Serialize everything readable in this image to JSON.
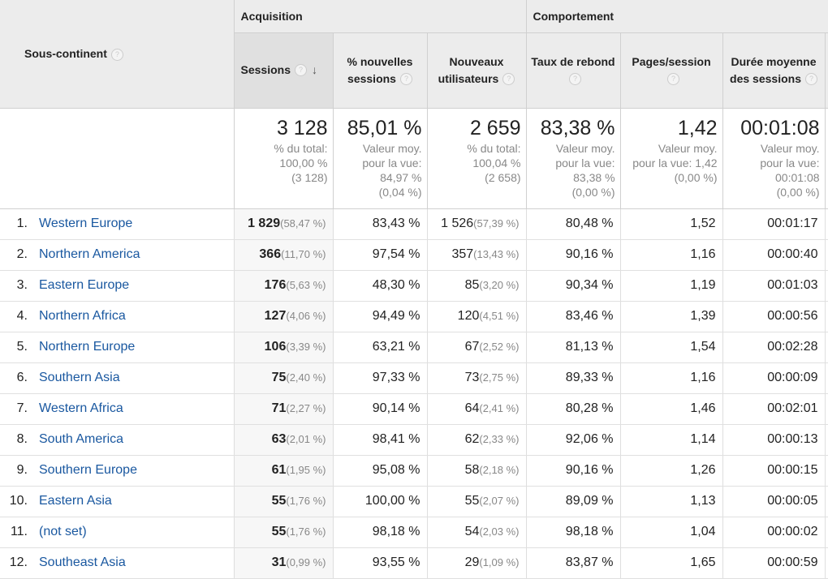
{
  "header": {
    "dimension": "Sous-continent",
    "group_acquisition": "Acquisition",
    "group_behavior": "Comportement",
    "sort_arrow": "↓",
    "help_glyph": "?",
    "columns": [
      "Sessions",
      "% nouvelles sessions",
      "Nouveaux utilisateurs",
      "Taux de rebond",
      "Pages/session",
      "Durée moyenne des sessions"
    ]
  },
  "totals": [
    {
      "value": "3 128",
      "sub": "% du total:\n100,00 %\n(3 128)"
    },
    {
      "value": "85,01 %",
      "sub": "Valeur moy.\npour la vue:\n84,97 %\n(0,04 %)"
    },
    {
      "value": "2 659",
      "sub": "% du total:\n100,04 %\n(2 658)"
    },
    {
      "value": "83,38 %",
      "sub": "Valeur moy.\npour la vue:\n83,38 %\n(0,00 %)"
    },
    {
      "value": "1,42",
      "sub": "Valeur moy.\npour la vue: 1,42\n(0,00 %)"
    },
    {
      "value": "00:01:08",
      "sub": "Valeur moy.\npour la vue:\n00:01:08\n(0,00 %)"
    }
  ],
  "rows": [
    {
      "idx": "1.",
      "name": "Western Europe",
      "sessions": "1 829",
      "sessions_pct": "(58,47 %)",
      "new_pct": "83,43 %",
      "new_users": "1 526",
      "new_users_pct": "(57,39 %)",
      "bounce": "80,48 %",
      "pages": "1,52",
      "duration": "00:01:17"
    },
    {
      "idx": "2.",
      "name": "Northern America",
      "sessions": "366",
      "sessions_pct": "(11,70 %)",
      "new_pct": "97,54 %",
      "new_users": "357",
      "new_users_pct": "(13,43 %)",
      "bounce": "90,16 %",
      "pages": "1,16",
      "duration": "00:00:40"
    },
    {
      "idx": "3.",
      "name": "Eastern Europe",
      "sessions": "176",
      "sessions_pct": "(5,63 %)",
      "new_pct": "48,30 %",
      "new_users": "85",
      "new_users_pct": "(3,20 %)",
      "bounce": "90,34 %",
      "pages": "1,19",
      "duration": "00:01:03"
    },
    {
      "idx": "4.",
      "name": "Northern Africa",
      "sessions": "127",
      "sessions_pct": "(4,06 %)",
      "new_pct": "94,49 %",
      "new_users": "120",
      "new_users_pct": "(4,51 %)",
      "bounce": "83,46 %",
      "pages": "1,39",
      "duration": "00:00:56"
    },
    {
      "idx": "5.",
      "name": "Northern Europe",
      "sessions": "106",
      "sessions_pct": "(3,39 %)",
      "new_pct": "63,21 %",
      "new_users": "67",
      "new_users_pct": "(2,52 %)",
      "bounce": "81,13 %",
      "pages": "1,54",
      "duration": "00:02:28"
    },
    {
      "idx": "6.",
      "name": "Southern Asia",
      "sessions": "75",
      "sessions_pct": "(2,40 %)",
      "new_pct": "97,33 %",
      "new_users": "73",
      "new_users_pct": "(2,75 %)",
      "bounce": "89,33 %",
      "pages": "1,16",
      "duration": "00:00:09"
    },
    {
      "idx": "7.",
      "name": "Western Africa",
      "sessions": "71",
      "sessions_pct": "(2,27 %)",
      "new_pct": "90,14 %",
      "new_users": "64",
      "new_users_pct": "(2,41 %)",
      "bounce": "80,28 %",
      "pages": "1,46",
      "duration": "00:02:01"
    },
    {
      "idx": "8.",
      "name": "South America",
      "sessions": "63",
      "sessions_pct": "(2,01 %)",
      "new_pct": "98,41 %",
      "new_users": "62",
      "new_users_pct": "(2,33 %)",
      "bounce": "92,06 %",
      "pages": "1,14",
      "duration": "00:00:13"
    },
    {
      "idx": "9.",
      "name": "Southern Europe",
      "sessions": "61",
      "sessions_pct": "(1,95 %)",
      "new_pct": "95,08 %",
      "new_users": "58",
      "new_users_pct": "(2,18 %)",
      "bounce": "90,16 %",
      "pages": "1,26",
      "duration": "00:00:15"
    },
    {
      "idx": "10.",
      "name": "Eastern Asia",
      "sessions": "55",
      "sessions_pct": "(1,76 %)",
      "new_pct": "100,00 %",
      "new_users": "55",
      "new_users_pct": "(2,07 %)",
      "bounce": "89,09 %",
      "pages": "1,13",
      "duration": "00:00:05"
    },
    {
      "idx": "11.",
      "name": "(not set)",
      "sessions": "55",
      "sessions_pct": "(1,76 %)",
      "new_pct": "98,18 %",
      "new_users": "54",
      "new_users_pct": "(2,03 %)",
      "bounce": "98,18 %",
      "pages": "1,04",
      "duration": "00:00:02"
    },
    {
      "idx": "12.",
      "name": "Southeast Asia",
      "sessions": "31",
      "sessions_pct": "(0,99 %)",
      "new_pct": "93,55 %",
      "new_users": "29",
      "new_users_pct": "(1,09 %)",
      "bounce": "83,87 %",
      "pages": "1,65",
      "duration": "00:00:59"
    }
  ],
  "colors": {
    "link": "#1a58a0",
    "header_bg": "#ececec",
    "muted": "#888888"
  }
}
